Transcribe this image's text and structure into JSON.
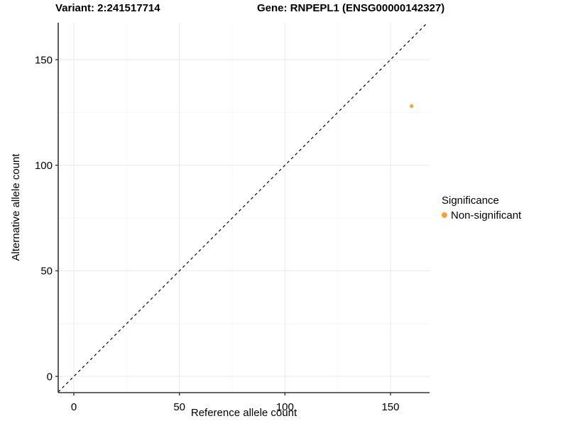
{
  "header": {
    "variant_title": "Variant: 2:241517714",
    "gene_title": "Gene: RNPEPL1 (ENSG00000142327)"
  },
  "chart_data": {
    "type": "scatter",
    "title": "",
    "xlabel": "Reference allele count",
    "ylabel": "Alternative allele count",
    "xlim": [
      -7.4,
      168.5
    ],
    "ylim": [
      -7.7,
      167.5
    ],
    "x_ticks": [
      0,
      50,
      100,
      150
    ],
    "y_ticks": [
      0,
      50,
      100,
      150
    ],
    "x_minor_ticks": [
      25,
      75,
      125
    ],
    "y_minor_ticks": [
      25,
      75,
      125
    ],
    "grid": "major and minor, light gray on white",
    "points": [
      {
        "x": 160,
        "y": 128,
        "series": "Non-significant"
      }
    ],
    "identity_line": {
      "slope": 1,
      "intercept": 0,
      "style": "dashed"
    },
    "legend": {
      "title": "Significance",
      "position": "right",
      "entries": [
        {
          "label": "Non-significant",
          "color": "#F9A232"
        }
      ]
    },
    "colors": {
      "point": "#F9A232",
      "axis": "#333333",
      "grid_major": "#ebebeb",
      "grid_minor": "#f6f6f6",
      "dashed_line": "#000000",
      "text": "#000000"
    }
  }
}
